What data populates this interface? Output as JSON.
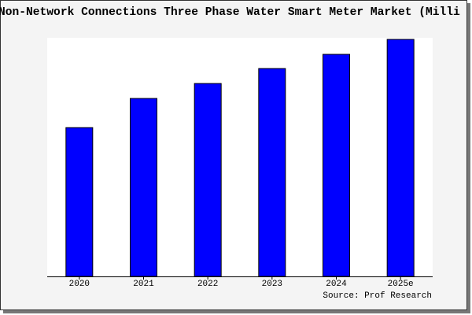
{
  "chart_data": {
    "type": "bar",
    "title": "Non-Network Connections Three Phase Water Smart Meter Market (Milli",
    "categories": [
      "2020",
      "2021",
      "2022",
      "2023",
      "2024",
      "2025e"
    ],
    "values": [
      189,
      226,
      245,
      264,
      282,
      301
    ],
    "color": "#0000ff",
    "ylim": [
      0,
      303
    ],
    "source": "Source: Prof Research"
  }
}
